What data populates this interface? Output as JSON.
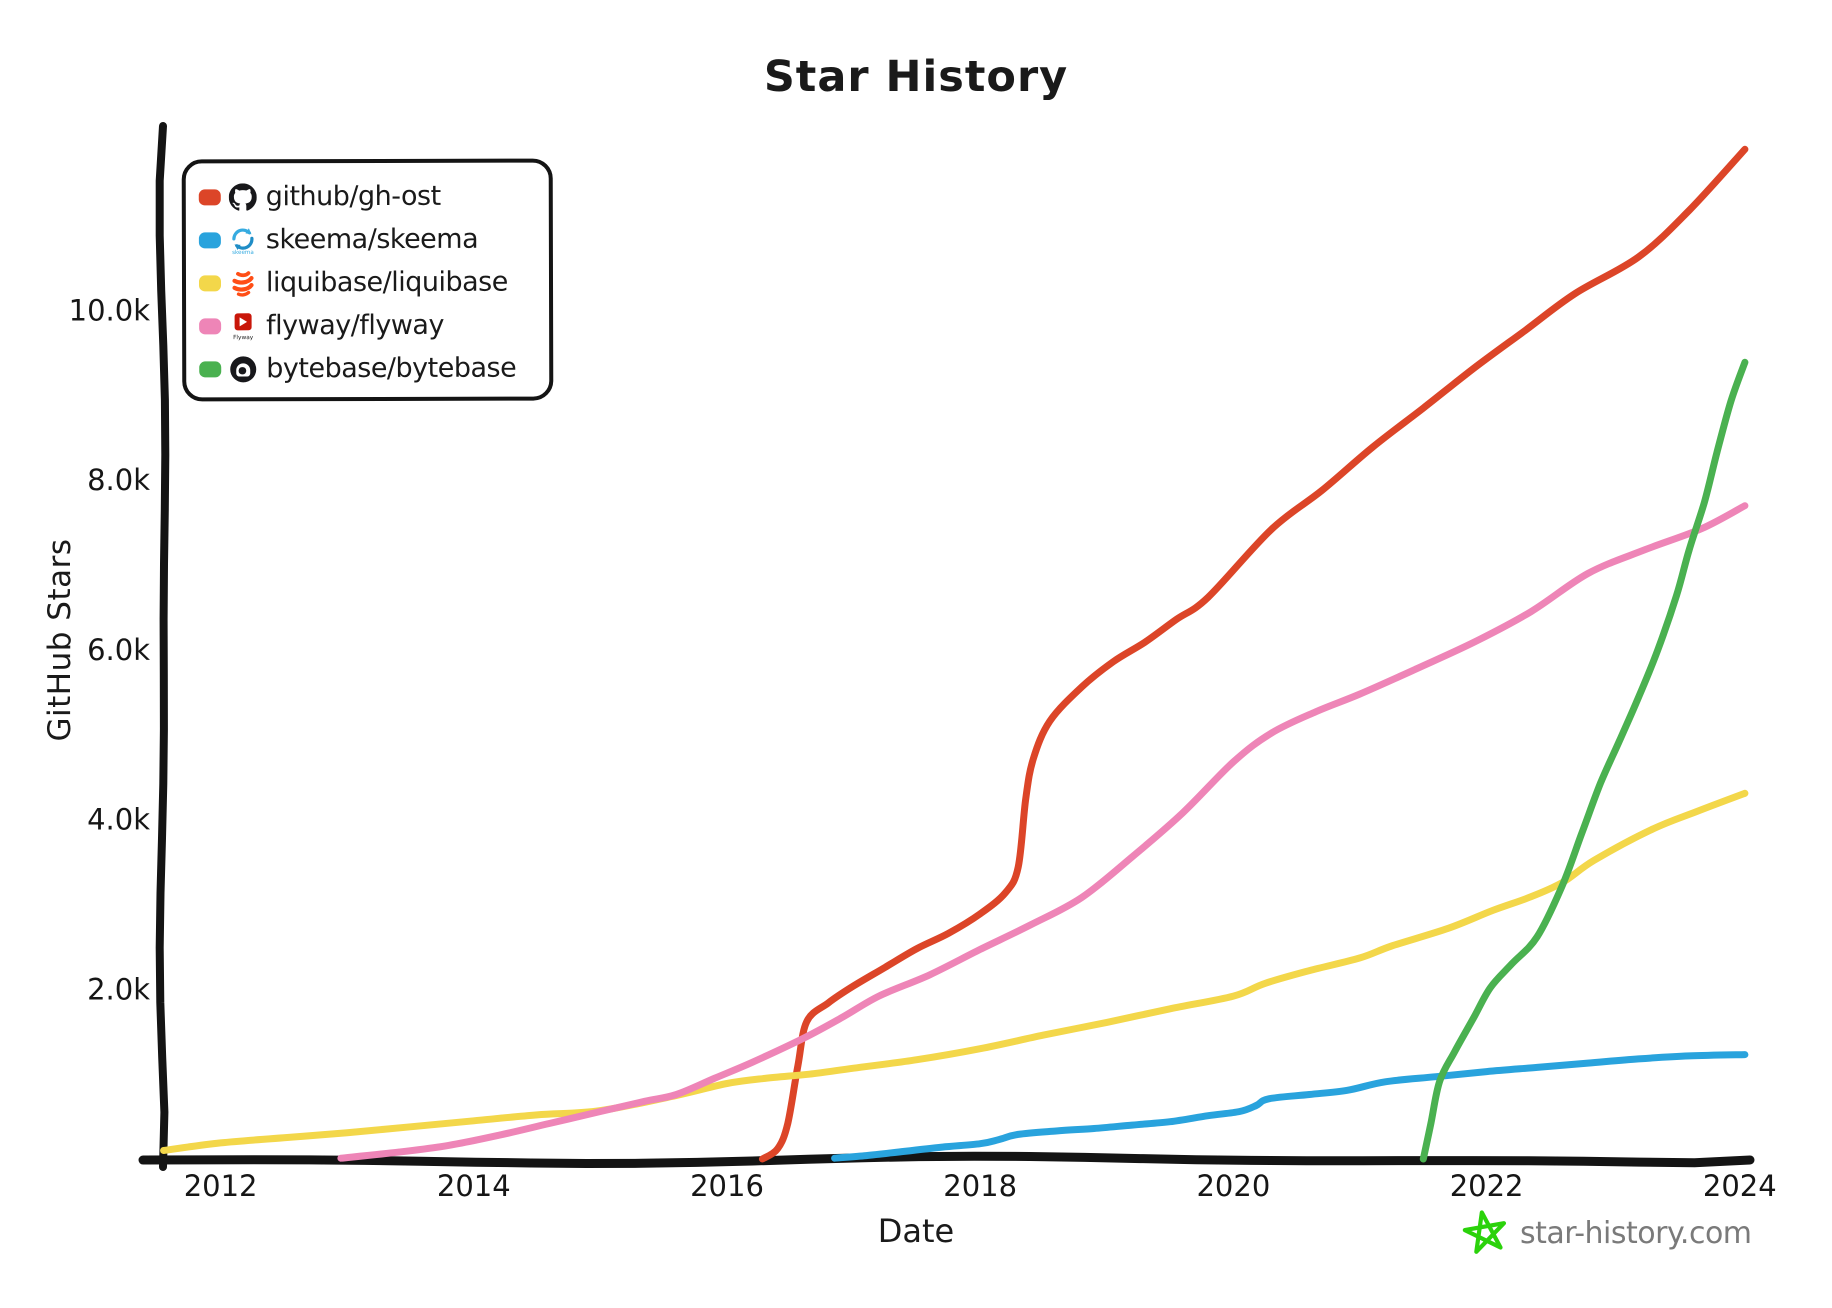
{
  "title": "Star History",
  "axes": {
    "x": {
      "label": "Date",
      "ticks": [
        {
          "label": "2012",
          "year": 2012
        },
        {
          "label": "2014",
          "year": 2014
        },
        {
          "label": "2016",
          "year": 2016
        },
        {
          "label": "2018",
          "year": 2018
        },
        {
          "label": "2020",
          "year": 2020
        },
        {
          "label": "2022",
          "year": 2022
        },
        {
          "label": "2024",
          "year": 2024
        }
      ]
    },
    "y": {
      "label": "GitHub Stars",
      "ticks": [
        {
          "label": "2.0k",
          "value": 2000
        },
        {
          "label": "4.0k",
          "value": 4000
        },
        {
          "label": "6.0k",
          "value": 6000
        },
        {
          "label": "8.0k",
          "value": 8000
        },
        {
          "label": "10.0k",
          "value": 10000
        }
      ]
    }
  },
  "legend": {
    "items": [
      {
        "label": "github/gh-ost",
        "color": "#dc4528",
        "icon": "github-octocat-icon"
      },
      {
        "label": "skeema/skeema",
        "color": "#29a3dd",
        "icon": "skeema-icon"
      },
      {
        "label": "liquibase/liquibase",
        "color": "#f3d74a",
        "icon": "liquibase-icon"
      },
      {
        "label": "flyway/flyway",
        "color": "#ee85b7",
        "icon": "flyway-icon"
      },
      {
        "label": "bytebase/bytebase",
        "color": "#4ab150",
        "icon": "bytebase-icon"
      }
    ]
  },
  "watermark": {
    "text": "star-history.com",
    "text_color": "#7a7a7a",
    "star_color": "#2bd20b"
  },
  "chart_data": {
    "type": "line",
    "title": "Star History",
    "xlabel": "Date",
    "ylabel": "GitHub Stars",
    "xlim": [
      2011.4,
      2024.3
    ],
    "ylim": [
      0,
      12300
    ],
    "grid": false,
    "legend_position": "top-left",
    "x_ticks": [
      2012,
      2014,
      2016,
      2018,
      2020,
      2022,
      2024
    ],
    "y_ticks": [
      2000,
      4000,
      6000,
      8000,
      10000
    ],
    "series": [
      {
        "name": "github/gh-ost",
        "color": "#dc4528",
        "points": [
          [
            2016.28,
            0
          ],
          [
            2016.4,
            120
          ],
          [
            2016.48,
            420
          ],
          [
            2016.56,
            1100
          ],
          [
            2016.63,
            1620
          ],
          [
            2016.8,
            1840
          ],
          [
            2017.0,
            2040
          ],
          [
            2017.25,
            2260
          ],
          [
            2017.5,
            2480
          ],
          [
            2017.75,
            2660
          ],
          [
            2018.0,
            2890
          ],
          [
            2018.2,
            3140
          ],
          [
            2018.3,
            3440
          ],
          [
            2018.36,
            4250
          ],
          [
            2018.42,
            4720
          ],
          [
            2018.55,
            5160
          ],
          [
            2018.8,
            5560
          ],
          [
            2019.05,
            5860
          ],
          [
            2019.3,
            6090
          ],
          [
            2019.55,
            6360
          ],
          [
            2019.8,
            6620
          ],
          [
            2020.3,
            7420
          ],
          [
            2020.7,
            7880
          ],
          [
            2021.1,
            8390
          ],
          [
            2021.5,
            8850
          ],
          [
            2021.9,
            9320
          ],
          [
            2022.3,
            9760
          ],
          [
            2022.7,
            10200
          ],
          [
            2023.2,
            10630
          ],
          [
            2023.6,
            11180
          ],
          [
            2024.04,
            11900
          ]
        ]
      },
      {
        "name": "skeema/skeema",
        "color": "#29a3dd",
        "points": [
          [
            2016.85,
            10
          ],
          [
            2017.1,
            40
          ],
          [
            2017.4,
            90
          ],
          [
            2017.7,
            140
          ],
          [
            2018.0,
            180
          ],
          [
            2018.15,
            230
          ],
          [
            2018.3,
            290
          ],
          [
            2018.6,
            330
          ],
          [
            2018.9,
            360
          ],
          [
            2019.2,
            400
          ],
          [
            2019.5,
            440
          ],
          [
            2019.8,
            510
          ],
          [
            2020.05,
            560
          ],
          [
            2020.18,
            630
          ],
          [
            2020.28,
            710
          ],
          [
            2020.6,
            760
          ],
          [
            2020.9,
            810
          ],
          [
            2021.2,
            910
          ],
          [
            2021.6,
            970
          ],
          [
            2022.0,
            1030
          ],
          [
            2022.4,
            1080
          ],
          [
            2022.8,
            1130
          ],
          [
            2023.2,
            1180
          ],
          [
            2023.6,
            1215
          ],
          [
            2024.04,
            1230
          ]
        ]
      },
      {
        "name": "liquibase/liquibase",
        "color": "#f3d74a",
        "points": [
          [
            2011.55,
            100
          ],
          [
            2012.0,
            190
          ],
          [
            2012.5,
            250
          ],
          [
            2013.0,
            310
          ],
          [
            2013.5,
            380
          ],
          [
            2014.0,
            450
          ],
          [
            2014.5,
            520
          ],
          [
            2015.0,
            570
          ],
          [
            2015.6,
            750
          ],
          [
            2016.0,
            890
          ],
          [
            2016.3,
            950
          ],
          [
            2016.65,
            1000
          ],
          [
            2017.0,
            1070
          ],
          [
            2017.5,
            1170
          ],
          [
            2018.0,
            1300
          ],
          [
            2018.5,
            1460
          ],
          [
            2019.0,
            1610
          ],
          [
            2019.5,
            1770
          ],
          [
            2020.0,
            1920
          ],
          [
            2020.25,
            2070
          ],
          [
            2020.6,
            2220
          ],
          [
            2021.0,
            2370
          ],
          [
            2021.25,
            2510
          ],
          [
            2021.7,
            2720
          ],
          [
            2022.05,
            2930
          ],
          [
            2022.35,
            3090
          ],
          [
            2022.6,
            3260
          ],
          [
            2022.85,
            3520
          ],
          [
            2023.3,
            3880
          ],
          [
            2023.65,
            4090
          ],
          [
            2024.04,
            4310
          ]
        ]
      },
      {
        "name": "flyway/flyway",
        "color": "#ee85b7",
        "points": [
          [
            2012.95,
            10
          ],
          [
            2013.4,
            80
          ],
          [
            2013.8,
            160
          ],
          [
            2014.2,
            280
          ],
          [
            2014.6,
            420
          ],
          [
            2015.0,
            560
          ],
          [
            2015.35,
            680
          ],
          [
            2015.6,
            760
          ],
          [
            2015.9,
            950
          ],
          [
            2016.2,
            1140
          ],
          [
            2016.6,
            1420
          ],
          [
            2016.9,
            1660
          ],
          [
            2017.2,
            1920
          ],
          [
            2017.6,
            2170
          ],
          [
            2018.0,
            2470
          ],
          [
            2018.4,
            2760
          ],
          [
            2018.8,
            3080
          ],
          [
            2019.2,
            3560
          ],
          [
            2019.6,
            4080
          ],
          [
            2020.0,
            4680
          ],
          [
            2020.3,
            5020
          ],
          [
            2020.65,
            5270
          ],
          [
            2021.0,
            5480
          ],
          [
            2021.45,
            5780
          ],
          [
            2021.9,
            6090
          ],
          [
            2022.35,
            6450
          ],
          [
            2022.8,
            6900
          ],
          [
            2023.25,
            7180
          ],
          [
            2023.7,
            7430
          ],
          [
            2024.04,
            7700
          ]
        ]
      },
      {
        "name": "bytebase/bytebase",
        "color": "#4ab150",
        "points": [
          [
            2021.5,
            0
          ],
          [
            2021.56,
            420
          ],
          [
            2021.63,
            920
          ],
          [
            2021.75,
            1270
          ],
          [
            2021.9,
            1670
          ],
          [
            2022.03,
            2020
          ],
          [
            2022.2,
            2300
          ],
          [
            2022.4,
            2620
          ],
          [
            2022.6,
            3230
          ],
          [
            2022.75,
            3830
          ],
          [
            2022.9,
            4430
          ],
          [
            2023.05,
            4930
          ],
          [
            2023.2,
            5440
          ],
          [
            2023.35,
            5990
          ],
          [
            2023.5,
            6640
          ],
          [
            2023.6,
            7180
          ],
          [
            2023.72,
            7740
          ],
          [
            2023.82,
            8330
          ],
          [
            2023.93,
            8930
          ],
          [
            2024.04,
            9390
          ]
        ]
      }
    ]
  }
}
